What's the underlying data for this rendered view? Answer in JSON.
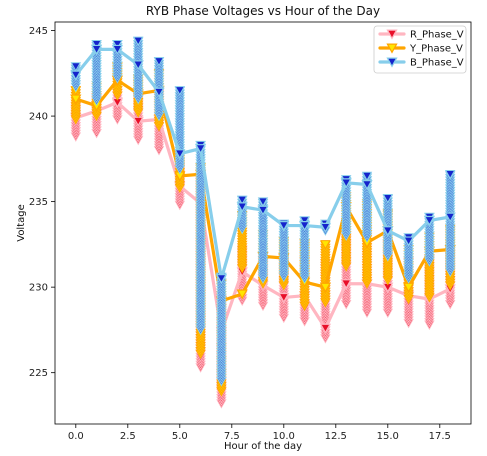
{
  "chart_data": {
    "type": "line",
    "title": "RYB Phase Voltages vs Hour of the Day",
    "xlabel": "Hour of the day",
    "ylabel": "Voltage",
    "xlim": [
      -1,
      19
    ],
    "ylim": [
      222,
      245.5
    ],
    "xticks": [
      0.0,
      2.5,
      5.0,
      7.5,
      10.0,
      12.5,
      15.0,
      17.5
    ],
    "xtick_labels": [
      "0.0",
      "2.5",
      "5.0",
      "7.5",
      "10.0",
      "12.5",
      "15.0",
      "17.5"
    ],
    "yticks": [
      225,
      230,
      235,
      240,
      245
    ],
    "ytick_labels": [
      "225",
      "230",
      "235",
      "240",
      "245"
    ],
    "grid": false,
    "legend_position": "top-right",
    "x": [
      0,
      1,
      2,
      3,
      4,
      5,
      6,
      7,
      8,
      9,
      10,
      11,
      12,
      13,
      14,
      15,
      16,
      17,
      18
    ],
    "series": [
      {
        "name": "R_Phase_V",
        "line_color": "#ffb6c1",
        "marker_color": "#e8102a",
        "values": [
          239.9,
          240.3,
          240.8,
          239.7,
          239.8,
          235.9,
          234.9,
          227.4,
          230.9,
          230.1,
          229.4,
          229.5,
          227.6,
          230.2,
          230.2,
          230.0,
          229.5,
          229.3,
          229.9
        ],
        "min": [
          238.8,
          239.0,
          239.8,
          238.6,
          238.0,
          234.8,
          225.3,
          223.2,
          229.2,
          228.9,
          228.2,
          228.0,
          227.0,
          229.0,
          228.5,
          228.5,
          227.9,
          227.8,
          229.0
        ],
        "max": [
          240.6,
          241.1,
          241.5,
          241.1,
          241.3,
          237.2,
          236.3,
          229.3,
          232.2,
          231.6,
          231.7,
          231.5,
          231.4,
          232.9,
          232.5,
          232.5,
          231.5,
          231.6,
          232.0
        ]
      },
      {
        "name": "Y_Phase_V",
        "line_color": "#ffa500",
        "marker_color": "#ffe600",
        "values": [
          241.0,
          240.6,
          242.1,
          241.3,
          241.5,
          236.5,
          236.6,
          229.2,
          229.6,
          231.8,
          231.7,
          230.3,
          230.0,
          234.7,
          232.6,
          233.3,
          230.0,
          232.1,
          232.2
        ],
        "min": [
          239.8,
          240.0,
          241.2,
          240.2,
          239.4,
          235.8,
          226.1,
          223.9,
          231.1,
          230.2,
          230.1,
          228.9,
          229.1,
          231.2,
          230.2,
          230.4,
          229.3,
          229.4,
          230.1
        ],
        "max": [
          241.5,
          241.8,
          242.9,
          242.2,
          242.5,
          237.8,
          237.0,
          230.2,
          234.2,
          233.1,
          232.7,
          232.6,
          232.5,
          235.3,
          234.9,
          234.3,
          232.2,
          233.0,
          233.4
        ]
      },
      {
        "name": "B_Phase_V",
        "line_color": "#87ceeb",
        "marker_color": "#1524cc",
        "values": [
          242.4,
          243.9,
          243.9,
          243.0,
          241.4,
          237.8,
          238.1,
          230.5,
          234.7,
          234.5,
          233.6,
          233.6,
          233.5,
          236.1,
          236.0,
          233.3,
          232.7,
          233.9,
          234.1
        ],
        "min": [
          241.7,
          240.9,
          242.2,
          241.0,
          240.0,
          236.9,
          227.5,
          224.5,
          233.4,
          230.5,
          230.6,
          230.5,
          233.3,
          233.0,
          232.9,
          231.8,
          230.5,
          231.5,
          230.9
        ],
        "max": [
          242.9,
          244.2,
          244.2,
          244.4,
          243.2,
          241.5,
          238.3,
          230.6,
          235.1,
          235.0,
          233.7,
          233.9,
          233.7,
          236.3,
          236.5,
          235.2,
          232.9,
          234.1,
          236.6
        ]
      }
    ]
  }
}
